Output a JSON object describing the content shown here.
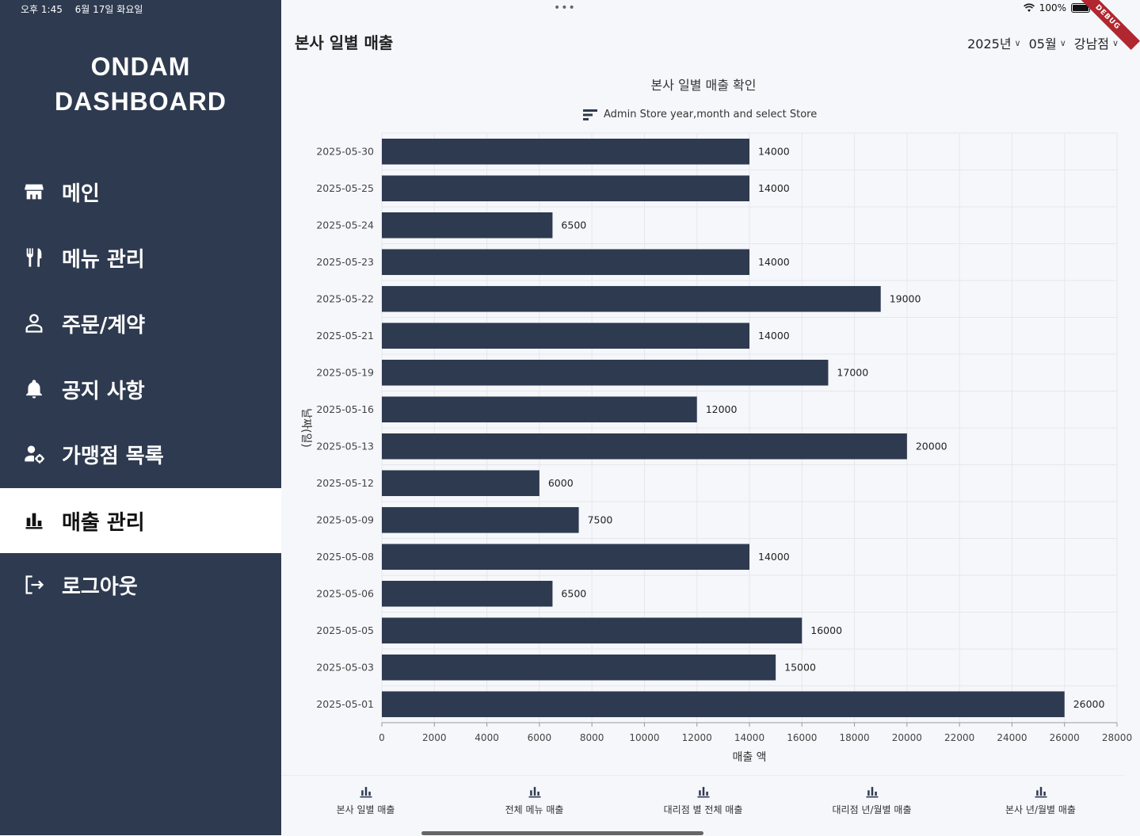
{
  "status": {
    "time": "오후 1:45",
    "date": "6월 17일 화요일",
    "battery": "100%",
    "ribbon": "DEBUG"
  },
  "sidebar": {
    "brand_line1": "ONDAM",
    "brand_line2": "DASHBOARD",
    "items": [
      {
        "label": "메인",
        "icon": "store-icon"
      },
      {
        "label": "메뉴 관리",
        "icon": "fork-knife-icon"
      },
      {
        "label": "주문/계약",
        "icon": "person-icon"
      },
      {
        "label": "공지 사항",
        "icon": "bell-icon"
      },
      {
        "label": "가맹점 목록",
        "icon": "person-gear-icon"
      },
      {
        "label": "매출 관리",
        "icon": "bar-chart-icon",
        "active": true
      },
      {
        "label": "로그아웃",
        "icon": "logout-icon"
      }
    ]
  },
  "header": {
    "title": "본사 일별 매출",
    "year": "2025년",
    "month": "05월",
    "store": "강남점"
  },
  "chart_data": {
    "type": "bar",
    "orientation": "horizontal",
    "title": "본사 일별 매출 확인",
    "legend": "Admin Store year,month and select Store",
    "xlabel": "매출 액",
    "ylabel": "날짜(일)",
    "xlim": [
      0,
      28000
    ],
    "x_ticks": [
      0,
      2000,
      4000,
      6000,
      8000,
      10000,
      12000,
      14000,
      16000,
      18000,
      20000,
      22000,
      24000,
      26000,
      28000
    ],
    "grid": true,
    "bar_color": "#2e3a4f",
    "categories": [
      "2025-05-30",
      "2025-05-25",
      "2025-05-24",
      "2025-05-23",
      "2025-05-22",
      "2025-05-21",
      "2025-05-19",
      "2025-05-16",
      "2025-05-13",
      "2025-05-12",
      "2025-05-09",
      "2025-05-08",
      "2025-05-06",
      "2025-05-05",
      "2025-05-03",
      "2025-05-01"
    ],
    "values": [
      14000,
      14000,
      6500,
      14000,
      19000,
      14000,
      17000,
      12000,
      20000,
      6000,
      7500,
      14000,
      6500,
      16000,
      15000,
      26000
    ]
  },
  "bottom_nav": [
    {
      "label": "본사 일별 매출"
    },
    {
      "label": "전체 메뉴 매출"
    },
    {
      "label": "대리점 별 전체 매출"
    },
    {
      "label": "대리점 년/월별 매출"
    },
    {
      "label": "본사 년/월별 매출"
    }
  ]
}
